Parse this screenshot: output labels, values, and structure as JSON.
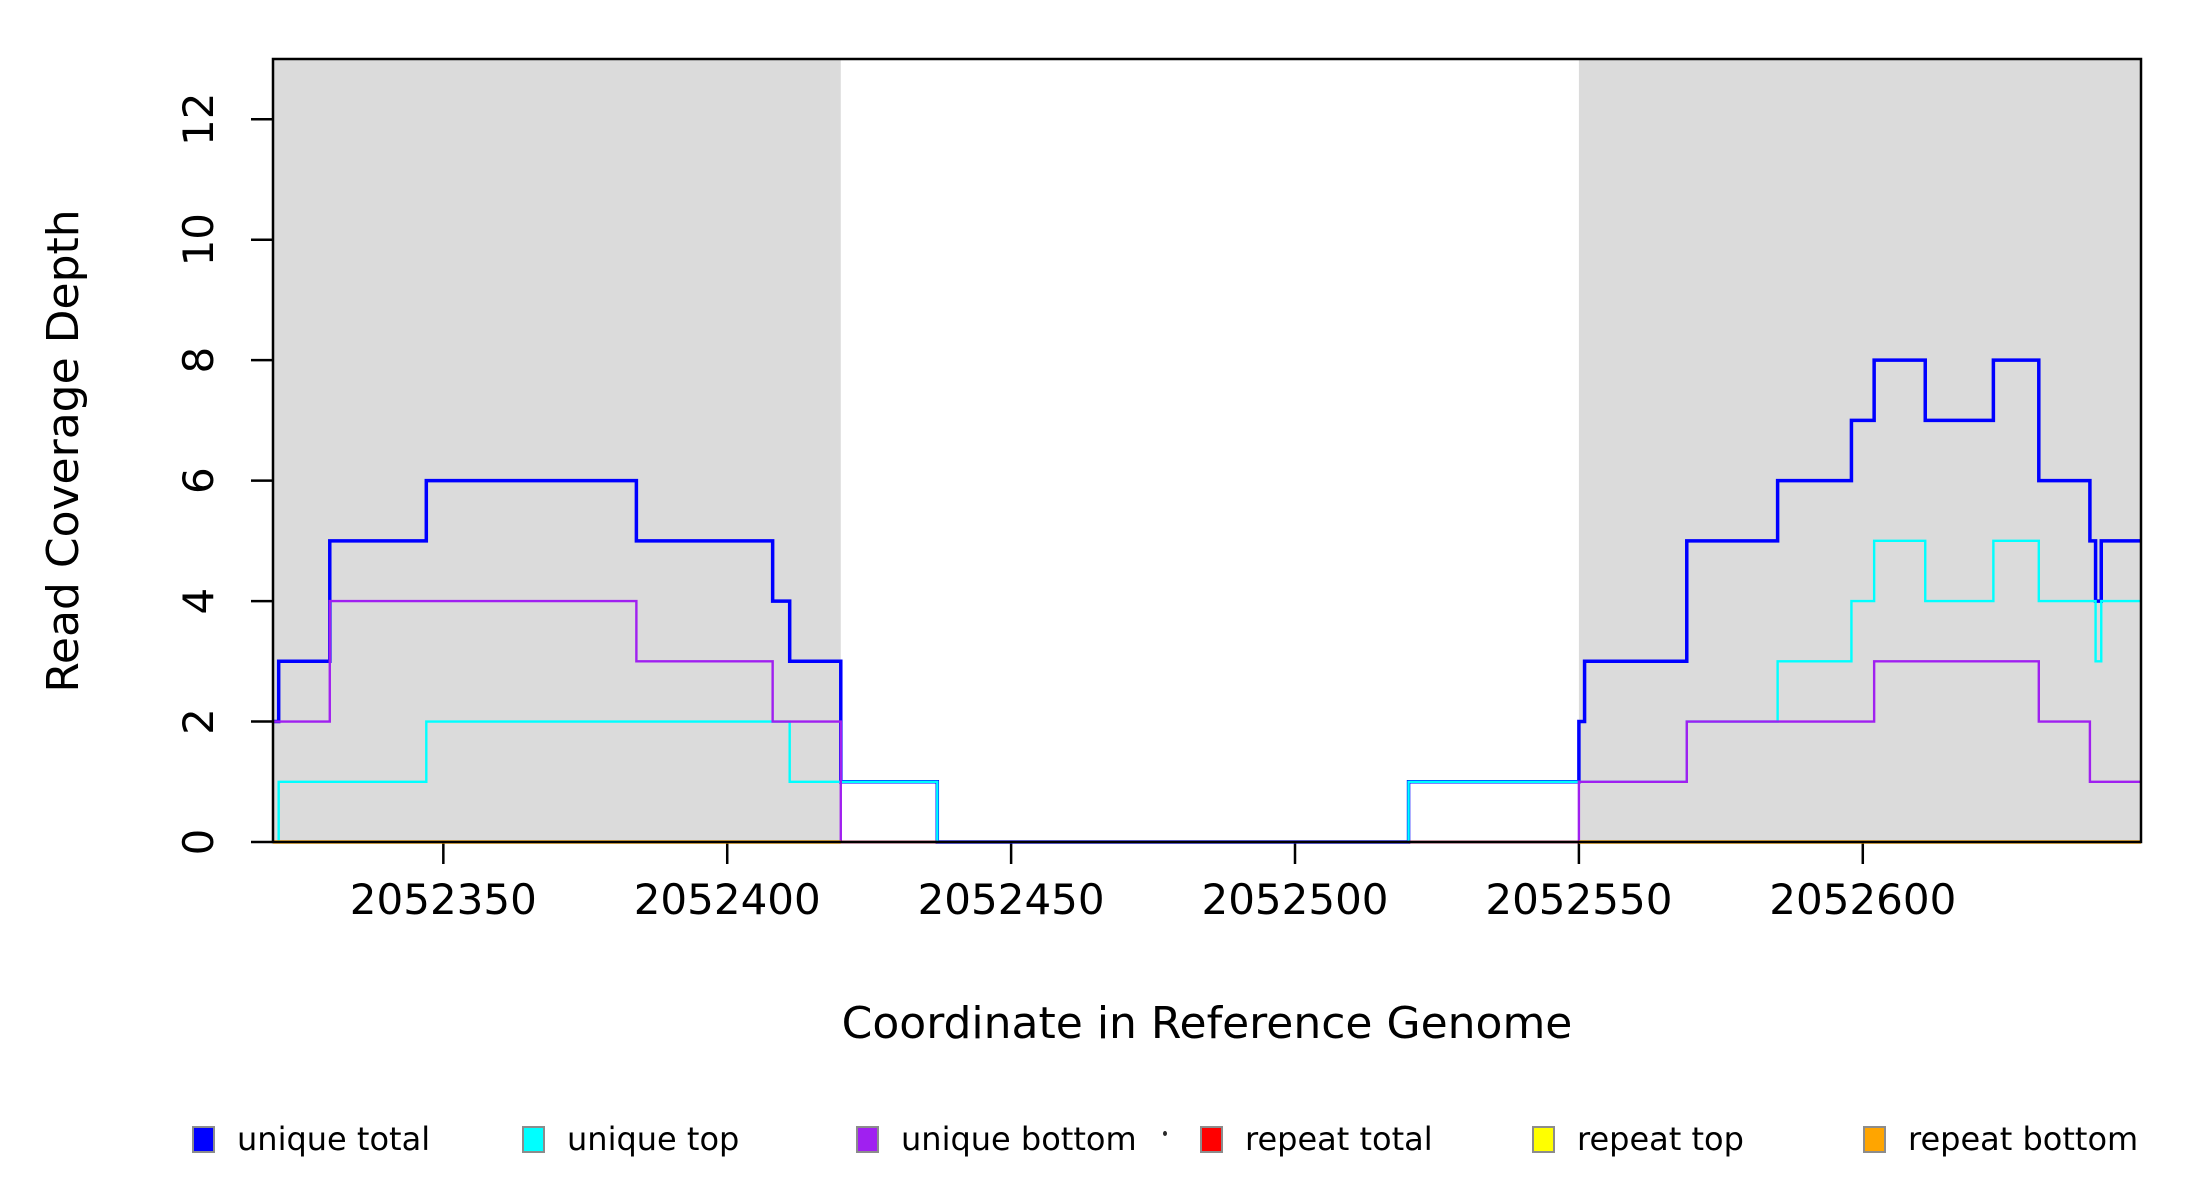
{
  "figure": {
    "x_title": "Coordinate in Reference Genome",
    "y_title": "Read Coverage Depth",
    "background": "#ffffff",
    "repeat_region_color": "#dbdbdb"
  },
  "axes": {
    "x": {
      "label": "Coordinate in Reference Genome",
      "lim": [
        2052320,
        2052649
      ],
      "tick_values": [
        2052350,
        2052400,
        2052450,
        2052500,
        2052550,
        2052600
      ],
      "tick_labels": [
        "2052350",
        "2052400",
        "2052450",
        "2052500",
        "2052550",
        "2052600"
      ]
    },
    "y": {
      "label": "Read Coverage Depth",
      "lim": [
        0,
        13
      ],
      "tick_values": [
        0,
        2,
        4,
        6,
        8,
        10,
        12
      ],
      "tick_labels": [
        "0",
        "2",
        "4",
        "6",
        "8",
        "10",
        "12"
      ]
    }
  },
  "repeat_regions": [
    {
      "start": 2052320,
      "end": 2052420
    },
    {
      "start": 2052550,
      "end": 2052649
    }
  ],
  "chart_data": {
    "type": "line",
    "subtype": "step",
    "x_end": 2052649,
    "series": [
      {
        "name": "unique total",
        "color": "#0000ff",
        "width": 3.5,
        "steps": [
          [
            2052320,
            2
          ],
          [
            2052321,
            3
          ],
          [
            2052330,
            5
          ],
          [
            2052347,
            6
          ],
          [
            2052384,
            5
          ],
          [
            2052408,
            4
          ],
          [
            2052411,
            3
          ],
          [
            2052420,
            1
          ],
          [
            2052437,
            0
          ],
          [
            2052520,
            1
          ],
          [
            2052550,
            2
          ],
          [
            2052551,
            3
          ],
          [
            2052569,
            5
          ],
          [
            2052585,
            6
          ],
          [
            2052598,
            7
          ],
          [
            2052602,
            8
          ],
          [
            2052611,
            7
          ],
          [
            2052623,
            8
          ],
          [
            2052631,
            6
          ],
          [
            2052640,
            5
          ],
          [
            2052641,
            4
          ],
          [
            2052642,
            5
          ]
        ]
      },
      {
        "name": "unique top",
        "color": "#00ffff",
        "width": 2.4,
        "steps": [
          [
            2052320,
            0
          ],
          [
            2052321,
            1
          ],
          [
            2052347,
            2
          ],
          [
            2052411,
            1
          ],
          [
            2052437,
            0
          ],
          [
            2052520,
            1
          ],
          [
            2052569,
            2
          ],
          [
            2052585,
            3
          ],
          [
            2052598,
            4
          ],
          [
            2052602,
            5
          ],
          [
            2052611,
            4
          ],
          [
            2052623,
            5
          ],
          [
            2052631,
            4
          ],
          [
            2052641,
            3
          ],
          [
            2052642,
            4
          ]
        ]
      },
      {
        "name": "unique bottom",
        "color": "#a020f0",
        "width": 2.4,
        "steps": [
          [
            2052320,
            2
          ],
          [
            2052330,
            4
          ],
          [
            2052384,
            3
          ],
          [
            2052408,
            2
          ],
          [
            2052420,
            0
          ],
          [
            2052550,
            1
          ],
          [
            2052569,
            2
          ],
          [
            2052602,
            3
          ],
          [
            2052631,
            2
          ],
          [
            2052640,
            1
          ]
        ]
      },
      {
        "name": "repeat total",
        "color": "#ff0000",
        "width": 2.4,
        "value": 0,
        "segments": [
          [
            2052320,
            2052437
          ],
          [
            2052520,
            2052649
          ]
        ]
      },
      {
        "name": "repeat top",
        "color": "#ffff00",
        "width": 2.4,
        "value": 0,
        "segments": [
          [
            2052320,
            2052420
          ],
          [
            2052550,
            2052649
          ]
        ]
      },
      {
        "name": "repeat bottom",
        "color": "#ffa500",
        "width": 3.5,
        "value": 0,
        "segments": [
          [
            2052320,
            2052420
          ],
          [
            2052550,
            2052649
          ]
        ]
      }
    ]
  },
  "legend": {
    "items": [
      {
        "label": "unique total",
        "color": "#0000ff"
      },
      {
        "label": "unique top",
        "color": "#00ffff"
      },
      {
        "label": "unique bottom",
        "color": "#a020f0"
      },
      {
        "label": "repeat total",
        "color": "#ff0000"
      },
      {
        "label": "repeat top",
        "color": "#ffff00"
      },
      {
        "label": "repeat bottom",
        "color": "#ffa500"
      }
    ]
  },
  "annotations": {
    "stray_dot": {
      "present": true
    }
  }
}
